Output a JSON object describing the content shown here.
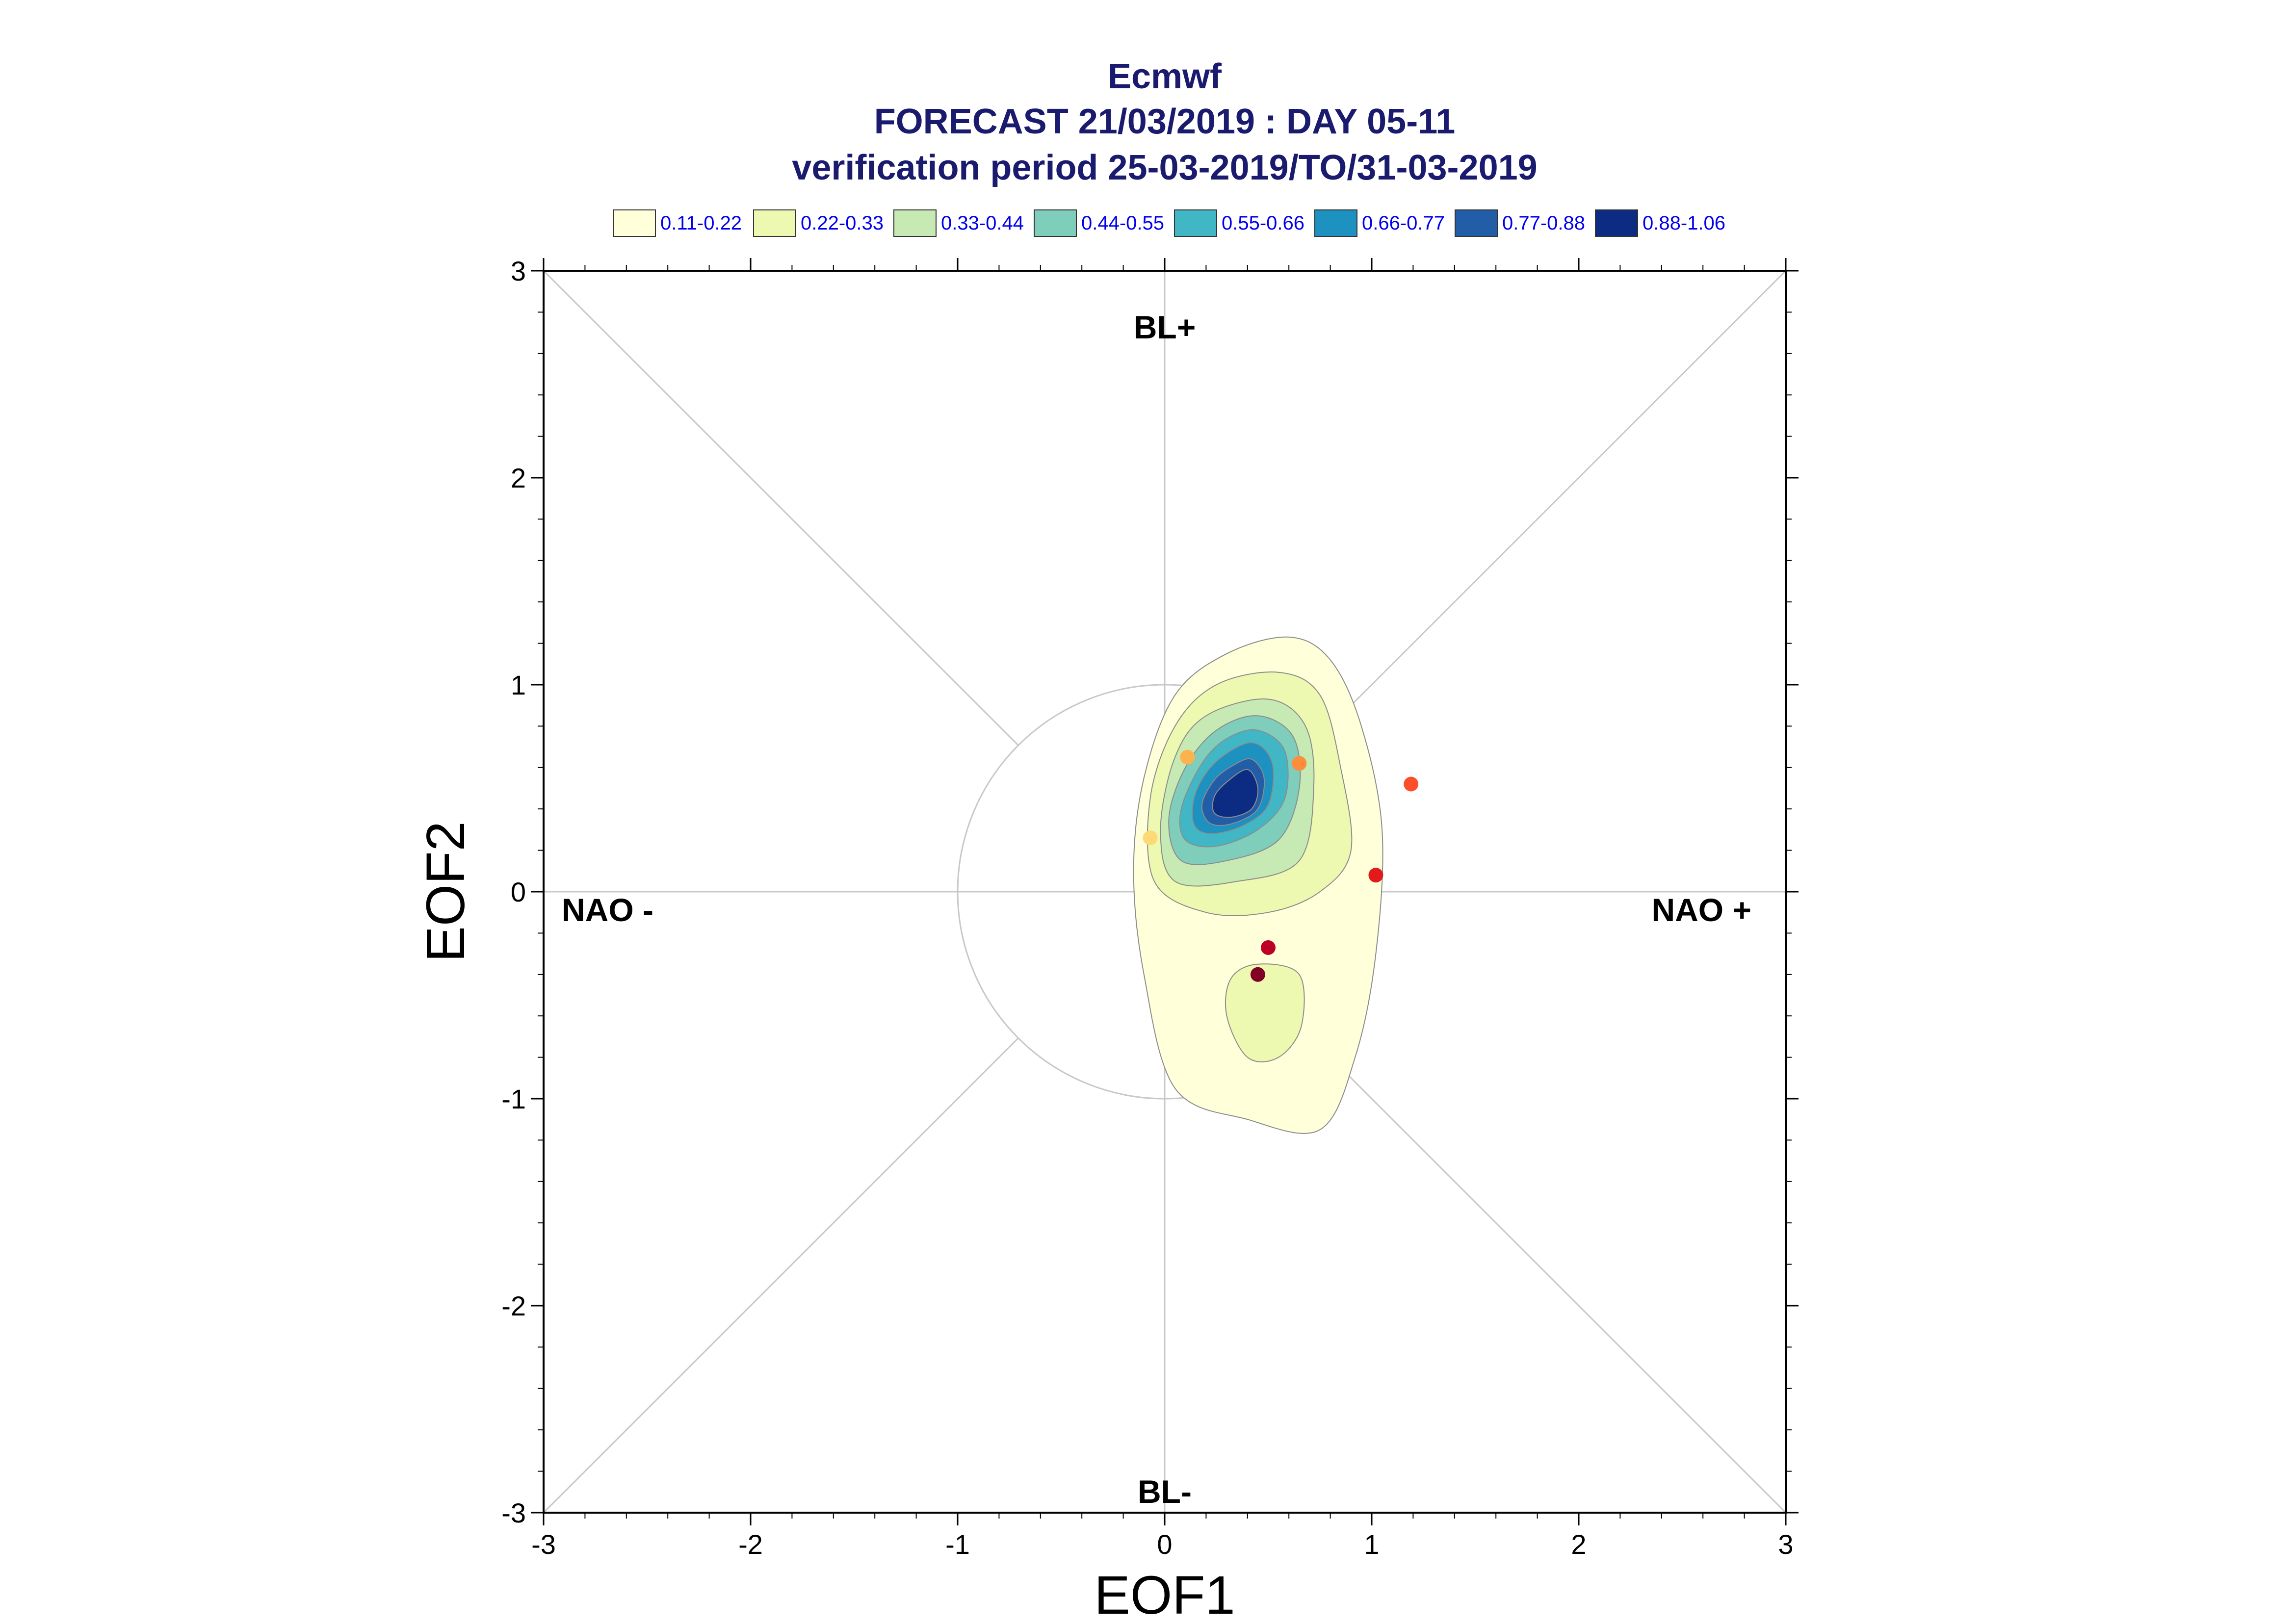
{
  "chart_data": {
    "type": "contour-scatter",
    "title": "Ecmwf",
    "subtitle_lines": [
      "FORECAST 21/03/2019 : DAY 05-11",
      "verification period 25-03-2019/TO/31-03-2019"
    ],
    "xlabel": "EOF1",
    "ylabel": "EOF2",
    "xlim": [
      -3,
      3
    ],
    "ylim": [
      -3,
      3
    ],
    "xticks": [
      "-3",
      "-2",
      "-1",
      "0",
      "1",
      "2",
      "3"
    ],
    "yticks": [
      "-3",
      "-2",
      "-1",
      "0",
      "1",
      "2",
      "3"
    ],
    "region_labels": {
      "top": "BL+",
      "bottom": "BL-",
      "left": "NAO -",
      "right": "NAO +"
    },
    "unit_circle_radius": 1,
    "legend": [
      {
        "label": "0.11-0.22",
        "color": "#ffffd9"
      },
      {
        "label": "0.22-0.33",
        "color": "#edf8b1"
      },
      {
        "label": "0.33-0.44",
        "color": "#c7e9b4"
      },
      {
        "label": "0.44-0.55",
        "color": "#7fcdbb"
      },
      {
        "label": "0.55-0.66",
        "color": "#41b6c4"
      },
      {
        "label": "0.66-0.77",
        "color": "#1d91c0"
      },
      {
        "label": "0.77-0.88",
        "color": "#225ea8"
      },
      {
        "label": "0.88-1.06",
        "color": "#0c2c84"
      }
    ],
    "density_levels": [
      {
        "level": "0.11-0.22",
        "color": "#ffffd9",
        "polygon": [
          [
            0.6,
            1.23
          ],
          [
            0.8,
            1.12
          ],
          [
            0.95,
            0.8
          ],
          [
            1.05,
            0.3
          ],
          [
            1.02,
            -0.3
          ],
          [
            0.92,
            -0.8
          ],
          [
            0.75,
            -1.15
          ],
          [
            0.4,
            -1.1
          ],
          [
            0.05,
            -0.95
          ],
          [
            -0.1,
            -0.4
          ],
          [
            -0.15,
            0.1
          ],
          [
            -0.1,
            0.55
          ],
          [
            0.05,
            0.95
          ],
          [
            0.3,
            1.15
          ]
        ]
      },
      {
        "level": "0.22-0.33",
        "color": "#edf8b1",
        "polygon": [
          [
            0.55,
            1.06
          ],
          [
            0.75,
            0.95
          ],
          [
            0.85,
            0.6
          ],
          [
            0.9,
            0.2
          ],
          [
            0.75,
            0.0
          ],
          [
            0.5,
            -0.1
          ],
          [
            0.2,
            -0.1
          ],
          [
            -0.05,
            0.05
          ],
          [
            -0.07,
            0.45
          ],
          [
            0.05,
            0.8
          ],
          [
            0.25,
            1.0
          ]
        ]
      },
      {
        "level": "0.22-0.33",
        "color": "#edf8b1",
        "polygon": [
          [
            0.45,
            -0.35
          ],
          [
            0.65,
            -0.4
          ],
          [
            0.66,
            -0.65
          ],
          [
            0.55,
            -0.8
          ],
          [
            0.4,
            -0.8
          ],
          [
            0.3,
            -0.6
          ],
          [
            0.32,
            -0.42
          ]
        ]
      },
      {
        "level": "0.33-0.44",
        "color": "#c7e9b4",
        "polygon": [
          [
            0.5,
            0.93
          ],
          [
            0.68,
            0.8
          ],
          [
            0.72,
            0.5
          ],
          [
            0.65,
            0.15
          ],
          [
            0.35,
            0.05
          ],
          [
            0.05,
            0.05
          ],
          [
            -0.02,
            0.3
          ],
          [
            0.05,
            0.65
          ],
          [
            0.2,
            0.85
          ]
        ]
      },
      {
        "level": "0.44-0.55",
        "color": "#7fcdbb",
        "polygon": [
          [
            0.45,
            0.85
          ],
          [
            0.62,
            0.75
          ],
          [
            0.65,
            0.5
          ],
          [
            0.55,
            0.25
          ],
          [
            0.3,
            0.15
          ],
          [
            0.08,
            0.15
          ],
          [
            0.02,
            0.35
          ],
          [
            0.1,
            0.6
          ],
          [
            0.25,
            0.78
          ]
        ]
      },
      {
        "level": "0.55-0.66",
        "color": "#41b6c4",
        "polygon": [
          [
            0.45,
            0.78
          ],
          [
            0.58,
            0.68
          ],
          [
            0.58,
            0.45
          ],
          [
            0.45,
            0.3
          ],
          [
            0.25,
            0.22
          ],
          [
            0.1,
            0.25
          ],
          [
            0.08,
            0.4
          ],
          [
            0.18,
            0.62
          ],
          [
            0.3,
            0.74
          ]
        ]
      },
      {
        "level": "0.66-0.77",
        "color": "#1d91c0",
        "polygon": [
          [
            0.42,
            0.72
          ],
          [
            0.52,
            0.62
          ],
          [
            0.5,
            0.42
          ],
          [
            0.38,
            0.32
          ],
          [
            0.22,
            0.28
          ],
          [
            0.14,
            0.33
          ],
          [
            0.15,
            0.48
          ],
          [
            0.25,
            0.63
          ]
        ]
      },
      {
        "level": "0.77-0.88",
        "color": "#225ea8",
        "polygon": [
          [
            0.42,
            0.64
          ],
          [
            0.48,
            0.55
          ],
          [
            0.45,
            0.4
          ],
          [
            0.33,
            0.33
          ],
          [
            0.22,
            0.33
          ],
          [
            0.18,
            0.42
          ],
          [
            0.24,
            0.54
          ],
          [
            0.33,
            0.61
          ]
        ]
      },
      {
        "level": "0.88-1.06",
        "color": "#0c2c84",
        "polygon": [
          [
            0.4,
            0.59
          ],
          [
            0.45,
            0.5
          ],
          [
            0.42,
            0.4
          ],
          [
            0.32,
            0.36
          ],
          [
            0.24,
            0.38
          ],
          [
            0.24,
            0.46
          ],
          [
            0.3,
            0.53
          ]
        ]
      }
    ],
    "points": [
      {
        "x": -0.07,
        "y": 0.26,
        "color": "#fed976"
      },
      {
        "x": 0.11,
        "y": 0.65,
        "color": "#feb24c"
      },
      {
        "x": 0.65,
        "y": 0.62,
        "color": "#fd8d3c"
      },
      {
        "x": 1.19,
        "y": 0.52,
        "color": "#fc4e2a"
      },
      {
        "x": 1.02,
        "y": 0.08,
        "color": "#e31a1c"
      },
      {
        "x": 0.5,
        "y": -0.27,
        "color": "#bd0026"
      },
      {
        "x": 0.45,
        "y": -0.4,
        "color": "#800026"
      }
    ]
  }
}
